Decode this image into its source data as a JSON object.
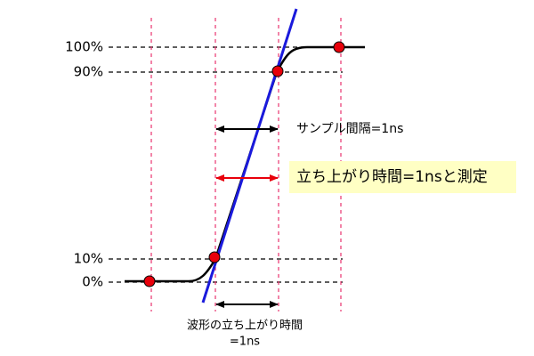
{
  "levels": [
    "100%",
    "90%",
    "10%",
    "0%"
  ],
  "annotations": {
    "sample_interval": "サンプル間隔=1ns",
    "measured": "立ち上がり時間=1nsと測定",
    "true_rise": [
      "波形の立ち上がり時間",
      "=1ns"
    ]
  }
}
